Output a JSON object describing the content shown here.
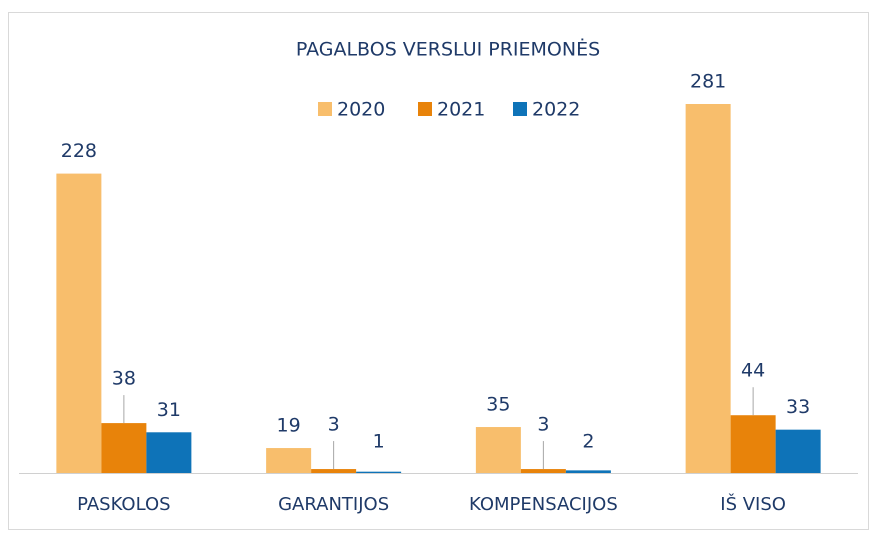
{
  "chart_data": {
    "type": "bar",
    "title": "PAGALBOS VERSLUI PRIEMONĖS",
    "categories": [
      "PASKOLOS",
      "GARANTIJOS",
      "KOMPENSACIJOS",
      "IŠ VISO"
    ],
    "series": [
      {
        "name": "2020",
        "color": "#f8be6c",
        "values": [
          228,
          19,
          35,
          281
        ]
      },
      {
        "name": "2021",
        "color": "#e8830a",
        "values": [
          38,
          3,
          3,
          44
        ]
      },
      {
        "name": "2022",
        "color": "#0e73b8",
        "values": [
          31,
          1,
          2,
          33
        ]
      }
    ],
    "legend": "top"
  }
}
